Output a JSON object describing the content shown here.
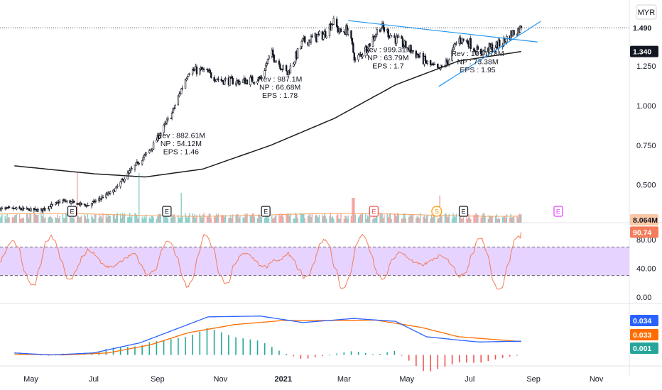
{
  "currency": "MYR",
  "colors": {
    "up": "#26a69a",
    "down": "#ef5350",
    "candle": "#131722",
    "ma": "#1e1e1e",
    "trend": "#2196f3",
    "volume_ma": "#f7a262",
    "rsi_line": "#f57c5a",
    "rsi_band": "#e6d3ff",
    "rsi_band_edge": "#9c27b0",
    "macd": "#2962ff",
    "signal": "#ff6d00",
    "hist_pos": "#26a69a",
    "hist_neg": "#ef5350",
    "earnings_past": "#131722",
    "earnings_next": "#ef5350",
    "earnings_future": "#e040fb",
    "dividend": "#ff9800"
  },
  "chart_data": [
    {
      "type": "candlestick",
      "panel": "price",
      "ylim": [
        0.28,
        1.62
      ],
      "y_ticks": [
        "1.250",
        "1.000",
        "0.750",
        "0.500"
      ],
      "x_ticks": [
        "May",
        "Jul",
        "Sep",
        "Nov",
        "2021",
        "Mar",
        "May",
        "Jul",
        "Sep",
        "Nov"
      ],
      "close_key": [
        [
          "2020-04-15",
          0.35
        ],
        [
          "2020-05-10",
          0.34
        ],
        [
          "2020-06-01",
          0.4
        ],
        [
          "2020-06-25",
          0.37
        ],
        [
          "2020-07-20",
          0.46
        ],
        [
          "2020-08-10",
          0.62
        ],
        [
          "2020-08-25",
          0.72
        ],
        [
          "2020-09-15",
          0.95
        ],
        [
          "2020-10-01",
          1.22
        ],
        [
          "2020-10-15",
          1.22
        ],
        [
          "2020-11-01",
          1.16
        ],
        [
          "2020-11-20",
          1.15
        ],
        [
          "2020-12-10",
          1.17
        ],
        [
          "2020-12-20",
          1.33
        ],
        [
          "2021-01-05",
          1.2
        ],
        [
          "2021-01-20",
          1.4
        ],
        [
          "2021-02-10",
          1.45
        ],
        [
          "2021-02-18",
          1.53
        ],
        [
          "2021-02-25",
          1.46
        ],
        [
          "2021-03-05",
          1.48
        ],
        [
          "2021-03-12",
          1.28
        ],
        [
          "2021-03-25",
          1.38
        ],
        [
          "2021-04-05",
          1.5
        ],
        [
          "2021-04-20",
          1.42
        ],
        [
          "2021-05-05",
          1.35
        ],
        [
          "2021-05-20",
          1.27
        ],
        [
          "2021-06-01",
          1.22
        ],
        [
          "2021-06-10",
          1.28
        ],
        [
          "2021-06-20",
          1.42
        ],
        [
          "2021-06-30",
          1.4
        ],
        [
          "2021-07-10",
          1.33
        ],
        [
          "2021-07-20",
          1.36
        ],
        [
          "2021-08-01",
          1.39
        ],
        [
          "2021-08-10",
          1.45
        ],
        [
          "2021-08-20",
          1.49
        ]
      ],
      "ma_key": [
        [
          "2020-04-15",
          0.62
        ],
        [
          "2020-07-01",
          0.57
        ],
        [
          "2020-08-20",
          0.55
        ],
        [
          "2020-10-15",
          0.6
        ],
        [
          "2020-12-20",
          0.75
        ],
        [
          "2021-02-20",
          0.92
        ],
        [
          "2021-04-20",
          1.13
        ],
        [
          "2021-06-20",
          1.28
        ],
        [
          "2021-08-20",
          1.34
        ]
      ],
      "trend_lines": [
        {
          "name": "upper",
          "from": [
            "2021-03-05",
            1.535
          ],
          "to": [
            "2021-09-05",
            1.4
          ]
        },
        {
          "name": "lower",
          "from": [
            "2021-06-01",
            1.12
          ],
          "to": [
            "2021-09-08",
            1.53
          ]
        }
      ],
      "last_price_label": "1.490",
      "last_price": 1.49,
      "ma_label": "1.340",
      "ma_value": 1.34,
      "annotations": [
        {
          "date": "2020-09-10",
          "rev": "Rev : 882.61M",
          "np": "NP : 54.12M",
          "eps": "EPS : 1.46"
        },
        {
          "date": "2020-12-15",
          "rev": "Rev : 987.1M",
          "np": "NP : 66.68M",
          "eps": "EPS : 1.78"
        },
        {
          "date": "2021-03-30",
          "rev": "Rev : 999.31M",
          "np": "NP : 63.79M",
          "eps": "EPS : 1.7"
        },
        {
          "date": "2021-06-25",
          "rev": "Rev : 1074.78M",
          "np": "NP : 73.38M",
          "eps": "EPS : 1.95"
        }
      ],
      "events": [
        {
          "kind": "earnings",
          "date": "2020-06-10",
          "label": "E"
        },
        {
          "kind": "earnings",
          "date": "2020-09-10",
          "label": "E"
        },
        {
          "kind": "earnings",
          "date": "2020-12-15",
          "label": "E"
        },
        {
          "kind": "earnings-next",
          "date": "2021-03-30",
          "label": "E"
        },
        {
          "kind": "dividend",
          "date": "2021-05-30",
          "label": "S"
        },
        {
          "kind": "earnings",
          "date": "2021-06-25",
          "label": "E"
        },
        {
          "kind": "earnings-future",
          "date": "2021-09-25",
          "label": "E"
        }
      ]
    },
    {
      "type": "bar",
      "panel": "volume",
      "last_label": "8.064M",
      "spikes": [
        [
          "2020-06-15",
          1.0
        ],
        [
          "2020-08-15",
          1.0
        ],
        [
          "2020-09-25",
          0.6
        ],
        [
          "2021-03-10",
          0.5
        ],
        [
          "2021-06-01",
          0.55
        ]
      ]
    },
    {
      "type": "line",
      "panel": "rsi",
      "ylim": [
        -5,
        100
      ],
      "y_ticks": [
        "80.00",
        "40.00",
        "0.00"
      ],
      "band": [
        30,
        70
      ],
      "last_label": "90.74",
      "last_value": 90.74
    },
    {
      "type": "line",
      "panel": "macd",
      "ylim": [
        -0.02,
        0.12
      ],
      "series": [
        {
          "name": "macd",
          "key": [
            [
              "2020-04-15",
              0.005
            ],
            [
              "2020-05-20",
              0.0
            ],
            [
              "2020-07-01",
              0.005
            ],
            [
              "2020-08-15",
              0.03
            ],
            [
              "2020-09-15",
              0.06
            ],
            [
              "2020-10-20",
              0.094
            ],
            [
              "2020-12-10",
              0.096
            ],
            [
              "2021-01-20",
              0.08
            ],
            [
              "2021-03-10",
              0.09
            ],
            [
              "2021-04-20",
              0.083
            ],
            [
              "2021-05-20",
              0.045
            ],
            [
              "2021-06-15",
              0.038
            ],
            [
              "2021-07-10",
              0.032
            ],
            [
              "2021-08-20",
              0.034
            ]
          ]
        },
        {
          "name": "signal",
          "key": [
            [
              "2020-04-15",
              0.002
            ],
            [
              "2020-06-01",
              0.0
            ],
            [
              "2020-07-15",
              0.005
            ],
            [
              "2020-08-25",
              0.025
            ],
            [
              "2020-10-01",
              0.055
            ],
            [
              "2020-11-15",
              0.075
            ],
            [
              "2021-01-01",
              0.085
            ],
            [
              "2021-02-15",
              0.085
            ],
            [
              "2021-04-01",
              0.086
            ],
            [
              "2021-05-15",
              0.068
            ],
            [
              "2021-06-20",
              0.045
            ],
            [
              "2021-08-20",
              0.033
            ]
          ]
        }
      ],
      "labels": [
        "0.034",
        "0.033",
        "0.001"
      ],
      "label_values": [
        0.034,
        0.033,
        0.001
      ]
    }
  ]
}
